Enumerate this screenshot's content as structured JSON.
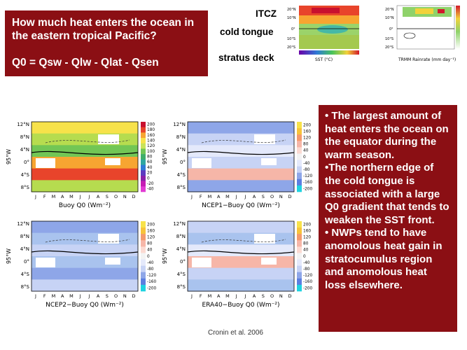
{
  "title_box": {
    "question": "How much heat enters the ocean in the eastern tropical Pacific?",
    "equation": "Q0 = Qsw - Qlw - Qlat - Qsen"
  },
  "top_labels": [
    "ITCZ",
    "cold tongue",
    "stratus deck"
  ],
  "top_panels": [
    {
      "xlabel": "SST (°C)",
      "lat_ticks": [
        "20°N",
        "10°N",
        "0°",
        "10°S",
        "20°S"
      ]
    },
    {
      "xlabel": "TRMM Rainrate (mm day⁻¹)",
      "lat_ticks": [
        "20°N",
        "10°N",
        "0°",
        "10°S",
        "20°S"
      ]
    }
  ],
  "months": [
    "J",
    "F",
    "M",
    "A",
    "M",
    "J",
    "J",
    "A",
    "S",
    "O",
    "N",
    "D"
  ],
  "panels": [
    {
      "title": "Buoy Q0 (Wm⁻²)",
      "ylabel": "95°W",
      "lat_ticks": [
        "12°N",
        "8°N",
        "4°N",
        "0°",
        "4°S",
        "8°S"
      ],
      "colorbar": [
        "200",
        "180",
        "160",
        "140",
        "120",
        "100",
        "80",
        "60",
        "40",
        "20",
        "0",
        "-20",
        "-40"
      ]
    },
    {
      "title": "NCEP1−Buoy Q0 (Wm⁻²)",
      "ylabel": "95°W",
      "lat_ticks": [
        "12°N",
        "8°N",
        "4°N",
        "0°",
        "4°S",
        "8°S"
      ],
      "colorbar": [
        "200",
        "160",
        "120",
        "80",
        "40",
        "0",
        "-40",
        "-80",
        "-120",
        "-160",
        "-200"
      ]
    },
    {
      "title": "NCEP2−Buoy Q0 (Wm⁻²)",
      "ylabel": "95°W",
      "lat_ticks": [
        "12°N",
        "8°N",
        "4°N",
        "0°",
        "4°S",
        "8°S"
      ],
      "colorbar": [
        "200",
        "160",
        "120",
        "80",
        "40",
        "0",
        "-40",
        "-80",
        "-120",
        "-160",
        "-200"
      ]
    },
    {
      "title": "ERA40−Buoy Q0 (Wm⁻²)",
      "ylabel": "95°W",
      "lat_ticks": [
        "12°N",
        "8°N",
        "4°N",
        "0°",
        "4°S",
        "8°S"
      ],
      "colorbar": [
        "200",
        "160",
        "120",
        "80",
        "40",
        "0",
        "-40",
        "-80",
        "-120",
        "-160",
        "-200"
      ]
    }
  ],
  "bullets": [
    "• The largest amount of heat enters the ocean on the equator during the warm season.",
    "•The northern edge of the cold tongue is associated with a large Q0 gradient that tends to weaken the SST front.",
    "• NWPs tend to have anomolous heat  gain in stratocumulus region and anomolous heat loss elsewhere."
  ],
  "citation": "Cronin et al. 2006"
}
